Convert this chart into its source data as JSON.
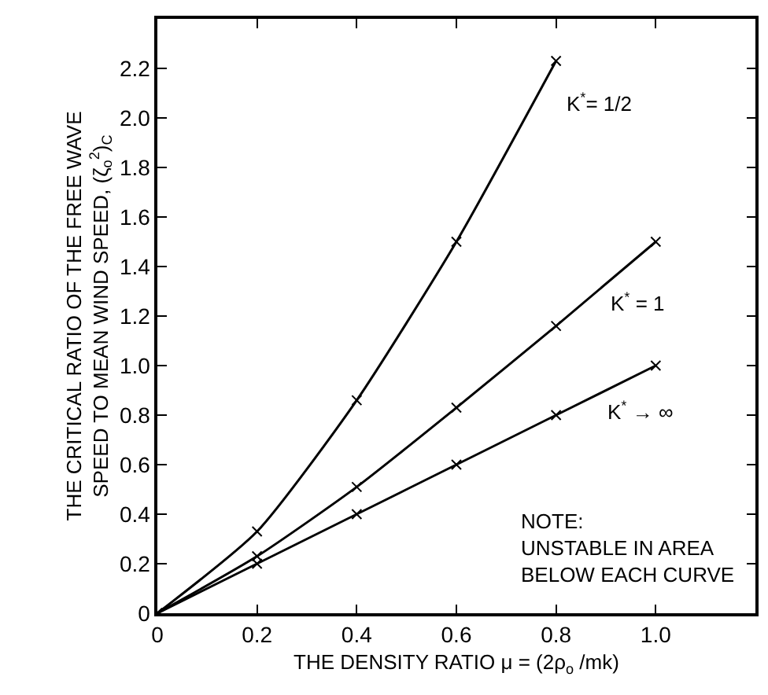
{
  "chart_data": {
    "type": "line",
    "xlabel": "THE DENSITY RATIO μ = (2ρ$_{o}$ /mk)",
    "ylabel": "THE CRITICAL RATIO OF THE FREE WAVE\nSPEED TO MEAN WIND SPEED, (ζ$_{o}$$^{2}$)$_{C}$",
    "xlim": [
      0,
      1.2
    ],
    "ylim": [
      0,
      2.4
    ],
    "xticks": [
      0,
      0.2,
      0.4,
      0.6,
      0.8,
      {
        "value": 1.0,
        "label": "1.0"
      }
    ],
    "yticks": [
      0,
      0.2,
      0.4,
      0.6,
      0.8,
      {
        "value": 1.0,
        "label": "1.0"
      },
      1.2,
      1.4,
      1.6,
      1.8,
      {
        "value": 2.0,
        "label": "2.0"
      },
      2.2
    ],
    "grid": false,
    "legend": false,
    "marker": "cross",
    "line_style": "solid",
    "series": [
      {
        "name": "K$^{*}$= 1/2",
        "color": "#000000",
        "x": [
          0,
          0.2,
          0.4,
          0.6,
          0.8
        ],
        "values": [
          0,
          0.33,
          0.86,
          1.5,
          2.23
        ]
      },
      {
        "name": "K$^{*}$ = 1",
        "color": "#000000",
        "x": [
          0,
          0.2,
          0.4,
          0.6,
          0.8,
          1.0
        ],
        "values": [
          0,
          0.23,
          0.51,
          0.83,
          1.16,
          1.5
        ]
      },
      {
        "name": "K$^{*}$ → ∞",
        "color": "#000000",
        "x": [
          0,
          0.2,
          0.4,
          0.6,
          0.8,
          1.0
        ],
        "values": [
          0,
          0.2,
          0.4,
          0.6,
          0.8,
          1.0
        ]
      }
    ],
    "annotations": [
      "NOTE:\nUNSTABLE IN AREA\nBELOW EACH CURVE"
    ]
  }
}
